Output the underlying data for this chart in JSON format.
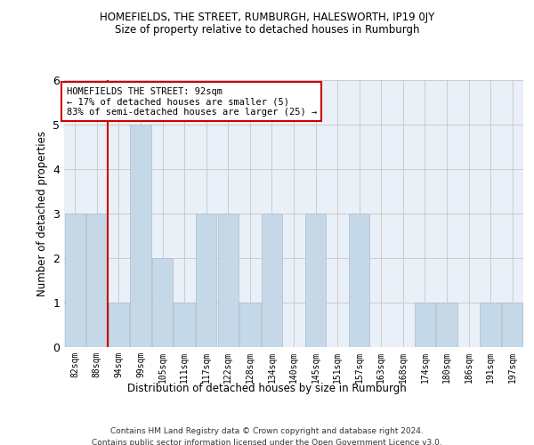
{
  "title": "HOMEFIELDS, THE STREET, RUMBURGH, HALESWORTH, IP19 0JY",
  "subtitle": "Size of property relative to detached houses in Rumburgh",
  "xlabel": "Distribution of detached houses by size in Rumburgh",
  "ylabel": "Number of detached properties",
  "footer_line1": "Contains HM Land Registry data © Crown copyright and database right 2024.",
  "footer_line2": "Contains public sector information licensed under the Open Government Licence v3.0.",
  "bins": [
    "82sqm",
    "88sqm",
    "94sqm",
    "99sqm",
    "105sqm",
    "111sqm",
    "117sqm",
    "122sqm",
    "128sqm",
    "134sqm",
    "140sqm",
    "145sqm",
    "151sqm",
    "157sqm",
    "163sqm",
    "168sqm",
    "174sqm",
    "180sqm",
    "186sqm",
    "191sqm",
    "197sqm"
  ],
  "values": [
    3,
    3,
    1,
    5,
    2,
    1,
    3,
    3,
    1,
    3,
    0,
    3,
    0,
    3,
    0,
    0,
    1,
    1,
    0,
    1,
    1
  ],
  "bar_color": "#c5d8e8",
  "bar_edge_color": "#aabccc",
  "grid_color": "#cccccc",
  "vline_x_index": 2,
  "vline_color": "#cc0000",
  "annotation_text": "HOMEFIELDS THE STREET: 92sqm\n← 17% of detached houses are smaller (5)\n83% of semi-detached houses are larger (25) →",
  "annotation_box_color": "#ffffff",
  "annotation_box_edge_color": "#cc0000",
  "ylim": [
    0,
    6
  ],
  "yticks": [
    0,
    1,
    2,
    3,
    4,
    5,
    6
  ],
  "background_color": "#eaf0f8"
}
